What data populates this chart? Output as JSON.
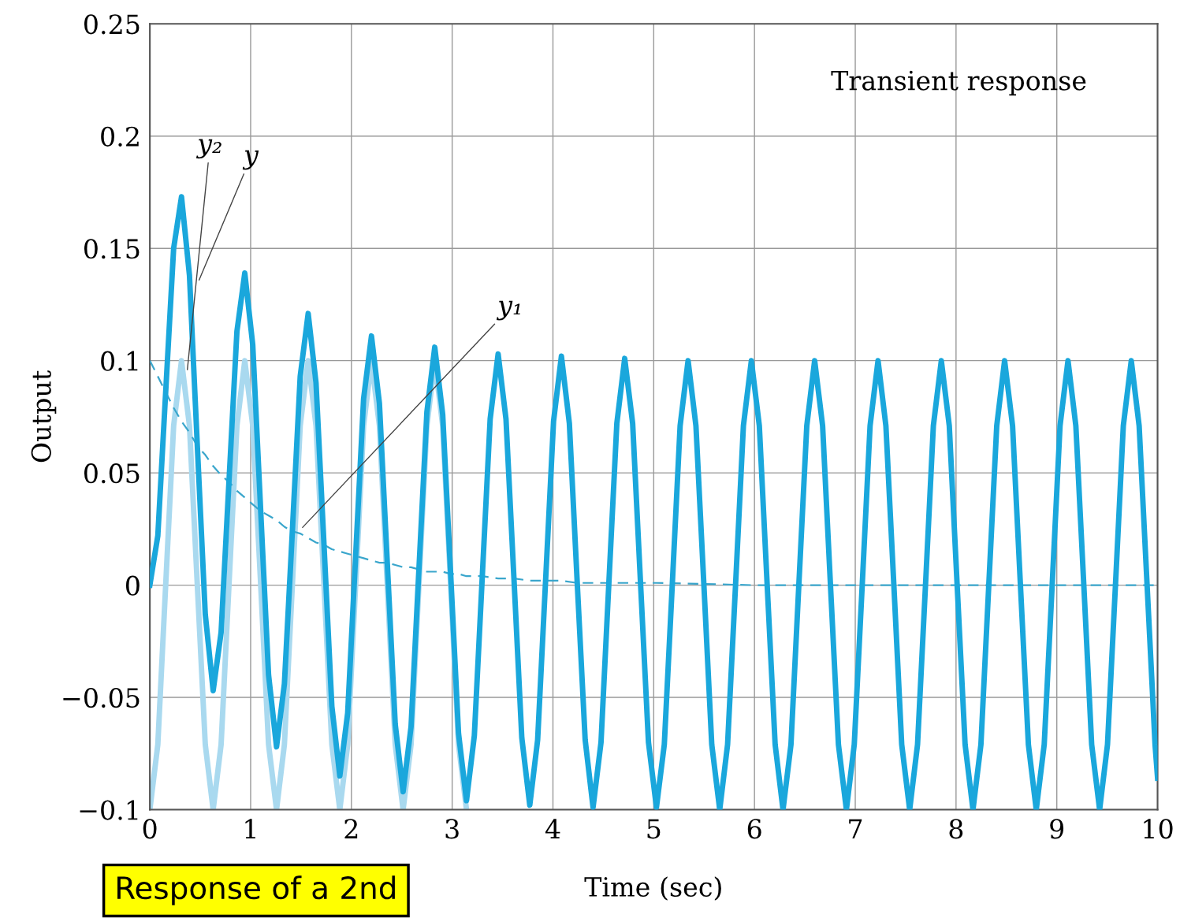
{
  "chart_data": {
    "type": "line",
    "xlabel": "Time (sec)",
    "ylabel": "Output",
    "xlim": [
      0,
      10
    ],
    "xticks": [
      0,
      1,
      2,
      3,
      4,
      5,
      6,
      7,
      8,
      9,
      {
        "value": 10,
        "label": "10"
      }
    ],
    "ylim": [
      -0.1,
      0.25
    ],
    "yticks": [
      {
        "value": -0.1,
        "label": "−0.1"
      },
      {
        "value": -0.05,
        "label": "−0.05"
      },
      0,
      0.05,
      0.1,
      0.15,
      0.2,
      0.25
    ],
    "grid": true,
    "legend": false,
    "marker": "none",
    "annotations": [
      "Transient response",
      "Response of a 2nd"
    ],
    "series": [
      {
        "name": "y₂",
        "color": "#a9d9ef",
        "line_style": "solid",
        "x": [
          0,
          0.079,
          0.157,
          0.236,
          0.314,
          0.393,
          0.471,
          0.55,
          0.628,
          0.707,
          0.785,
          0.864,
          0.942,
          1.021,
          1.1,
          1.178,
          1.257,
          1.335,
          1.414,
          1.492,
          1.571,
          1.649,
          1.728,
          1.806,
          1.885,
          1.963,
          2.042,
          2.121,
          2.199,
          2.278,
          2.356,
          2.435,
          2.513,
          2.592,
          2.67,
          2.749,
          2.827,
          2.906,
          2.985,
          3.063,
          3.142
        ],
        "values": [
          -0.1,
          -0.071,
          0,
          0.071,
          0.1,
          0.071,
          0,
          -0.071,
          -0.1,
          -0.071,
          0,
          0.071,
          0.1,
          0.071,
          0,
          -0.071,
          -0.1,
          -0.071,
          0,
          0.071,
          0.1,
          0.071,
          0,
          -0.071,
          -0.1,
          -0.071,
          0,
          0.071,
          0.1,
          0.071,
          0,
          -0.071,
          -0.1,
          -0.071,
          0,
          0.071,
          0.1,
          0.071,
          0,
          -0.071,
          -0.1
        ]
      },
      {
        "name": "y₁",
        "color": "#3aa6cc",
        "line_style": "dashed",
        "x": [
          0,
          0.079,
          0.157,
          0.236,
          0.314,
          0.393,
          0.471,
          0.55,
          0.628,
          0.707,
          0.785,
          0.864,
          0.942,
          1.021,
          1.1,
          1.178,
          1.257,
          1.335,
          1.414,
          1.492,
          1.571,
          1.649,
          1.728,
          1.806,
          1.885,
          1.963,
          2.042,
          2.121,
          2.199,
          2.278,
          2.356,
          2.435,
          2.513,
          2.592,
          2.67,
          2.749,
          2.827,
          2.906,
          2.985,
          3.063,
          3.142,
          3.299,
          3.456,
          3.613,
          3.77,
          3.927,
          4.084,
          4.241,
          4.398,
          4.555,
          4.712,
          4.869,
          5.027,
          6,
          8,
          10
        ],
        "values": [
          0.1,
          0.093,
          0.086,
          0.079,
          0.073,
          0.068,
          0.062,
          0.058,
          0.053,
          0.049,
          0.046,
          0.042,
          0.039,
          0.036,
          0.033,
          0.031,
          0.029,
          0.026,
          0.024,
          0.023,
          0.021,
          0.019,
          0.018,
          0.016,
          0.015,
          0.014,
          0.013,
          0.012,
          0.011,
          0.01,
          0.01,
          0.009,
          0.008,
          0.008,
          0.007,
          0.006,
          0.006,
          0.006,
          0.005,
          0.005,
          0.004,
          0.004,
          0.003,
          0.003,
          0.002,
          0.002,
          0.002,
          0.001,
          0.001,
          0.001,
          0.001,
          0.001,
          0.001,
          0,
          0,
          0
        ]
      },
      {
        "name": "y",
        "color": "#1aa7dc",
        "line_style": "solid",
        "x": [
          0,
          0.079,
          0.157,
          0.236,
          0.314,
          0.393,
          0.471,
          0.55,
          0.628,
          0.707,
          0.785,
          0.864,
          0.942,
          1.021,
          1.1,
          1.178,
          1.257,
          1.335,
          1.414,
          1.492,
          1.571,
          1.649,
          1.728,
          1.806,
          1.885,
          1.963,
          2.042,
          2.121,
          2.199,
          2.278,
          2.356,
          2.435,
          2.513,
          2.592,
          2.67,
          2.749,
          2.827,
          2.906,
          2.985,
          3.063,
          3.142,
          3.22,
          3.299,
          3.377,
          3.456,
          3.534,
          3.613,
          3.691,
          3.77,
          3.848,
          3.927,
          4.006,
          4.084,
          4.163,
          4.241,
          4.32,
          4.398,
          4.477,
          4.555,
          4.634,
          4.712,
          4.791,
          4.869,
          4.948,
          5.027,
          5.105,
          5.184,
          5.262,
          5.341,
          5.419,
          5.498,
          5.576,
          5.655,
          5.733,
          5.812,
          5.89,
          5.969,
          6.048,
          6.126,
          6.205,
          6.283,
          6.362,
          6.44,
          6.519,
          6.597,
          6.676,
          6.754,
          6.833,
          6.912,
          6.99,
          7.069,
          7.147,
          7.226,
          7.304,
          7.383,
          7.461,
          7.54,
          7.618,
          7.697,
          7.775,
          7.854,
          7.933,
          8.011,
          8.09,
          8.168,
          8.247,
          8.325,
          8.404,
          8.482,
          8.561,
          8.639,
          8.718,
          8.796,
          8.875,
          8.954,
          9.032,
          9.111,
          9.189,
          9.268,
          9.346,
          9.425,
          9.503,
          9.582,
          9.66,
          9.739,
          9.817,
          9.896,
          9.975,
          10
        ],
        "values": [
          0,
          0.022,
          0.086,
          0.15,
          0.173,
          0.138,
          0.062,
          -0.013,
          -0.047,
          -0.021,
          0.046,
          0.113,
          0.139,
          0.107,
          0.033,
          -0.04,
          -0.072,
          -0.044,
          0.024,
          0.093,
          0.121,
          0.09,
          0.018,
          -0.054,
          -0.085,
          -0.057,
          0.013,
          0.083,
          0.111,
          0.081,
          0.01,
          -0.062,
          -0.092,
          -0.063,
          0.007,
          0.077,
          0.106,
          0.076,
          0.005,
          -0.066,
          -0.096,
          -0.067,
          0.004,
          0.074,
          0.103,
          0.074,
          0.003,
          -0.068,
          -0.098,
          -0.069,
          0.002,
          0.073,
          0.102,
          0.072,
          0.001,
          -0.069,
          -0.099,
          -0.07,
          0.001,
          0.072,
          0.101,
          0.072,
          0.001,
          -0.07,
          -0.099,
          -0.071,
          0,
          0.071,
          0.1,
          0.071,
          0,
          -0.071,
          -0.1,
          -0.071,
          0,
          0.071,
          0.1,
          0.071,
          0,
          -0.071,
          -0.1,
          -0.071,
          0,
          0.071,
          0.1,
          0.071,
          0,
          -0.071,
          -0.1,
          -0.071,
          0,
          0.071,
          0.1,
          0.071,
          0,
          -0.071,
          -0.1,
          -0.071,
          0,
          0.071,
          0.1,
          0.071,
          0,
          -0.071,
          -0.1,
          -0.071,
          0,
          0.071,
          0.1,
          0.071,
          0,
          -0.071,
          -0.1,
          -0.071,
          0,
          0.071,
          0.1,
          0.071,
          0,
          -0.071,
          -0.1,
          -0.071,
          0,
          0.071,
          0.1,
          0.071,
          0,
          -0.071,
          -0.086
        ]
      }
    ]
  }
}
